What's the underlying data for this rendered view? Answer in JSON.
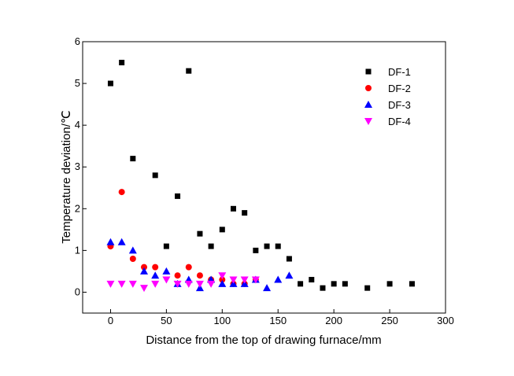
{
  "chart_data": {
    "type": "scatter",
    "xlabel": "Distance from the top of drawing furnace/mm",
    "ylabel": "Temperature deviation/℃",
    "xlim": [
      -25,
      300
    ],
    "ylim": [
      -0.5,
      6
    ],
    "xticks": [
      0,
      50,
      100,
      150,
      200,
      250,
      300
    ],
    "yticks": [
      0,
      1,
      2,
      3,
      4,
      5,
      6
    ],
    "grid": false,
    "legend_position": "top-right",
    "series": [
      {
        "name": "DF-1",
        "marker": "square",
        "color": "#000000",
        "x": [
          0,
          10,
          20,
          40,
          50,
          60,
          70,
          80,
          90,
          100,
          110,
          120,
          130,
          140,
          150,
          160,
          170,
          180,
          190,
          200,
          210,
          230,
          250,
          270
        ],
        "y": [
          5.0,
          5.5,
          3.2,
          2.8,
          1.1,
          2.3,
          5.3,
          1.4,
          1.1,
          1.5,
          2.0,
          1.9,
          1.0,
          1.1,
          1.1,
          0.8,
          0.2,
          0.3,
          0.1,
          0.2,
          0.2,
          0.1,
          0.2,
          0.2
        ]
      },
      {
        "name": "DF-2",
        "marker": "circle",
        "color": "#ff0000",
        "x": [
          0,
          10,
          20,
          30,
          40,
          60,
          70,
          80,
          90,
          100,
          110,
          120,
          130
        ],
        "y": [
          1.1,
          2.4,
          0.8,
          0.6,
          0.6,
          0.4,
          0.6,
          0.4,
          0.3,
          0.3,
          0.2,
          0.2,
          0.3
        ]
      },
      {
        "name": "DF-3",
        "marker": "triangle-up",
        "color": "#0000ff",
        "x": [
          0,
          10,
          20,
          30,
          40,
          50,
          60,
          70,
          80,
          90,
          100,
          110,
          120,
          130,
          140,
          150,
          160
        ],
        "y": [
          1.2,
          1.2,
          1.0,
          0.5,
          0.4,
          0.5,
          0.2,
          0.3,
          0.1,
          0.3,
          0.2,
          0.2,
          0.2,
          0.3,
          0.1,
          0.3,
          0.4
        ]
      },
      {
        "name": "DF-4",
        "marker": "triangle-down",
        "color": "#ff00ff",
        "x": [
          0,
          10,
          20,
          30,
          40,
          50,
          60,
          70,
          80,
          90,
          100,
          110,
          120,
          130
        ],
        "y": [
          0.2,
          0.2,
          0.2,
          0.1,
          0.2,
          0.3,
          0.2,
          0.2,
          0.2,
          0.2,
          0.4,
          0.3,
          0.3,
          0.3
        ]
      }
    ]
  }
}
